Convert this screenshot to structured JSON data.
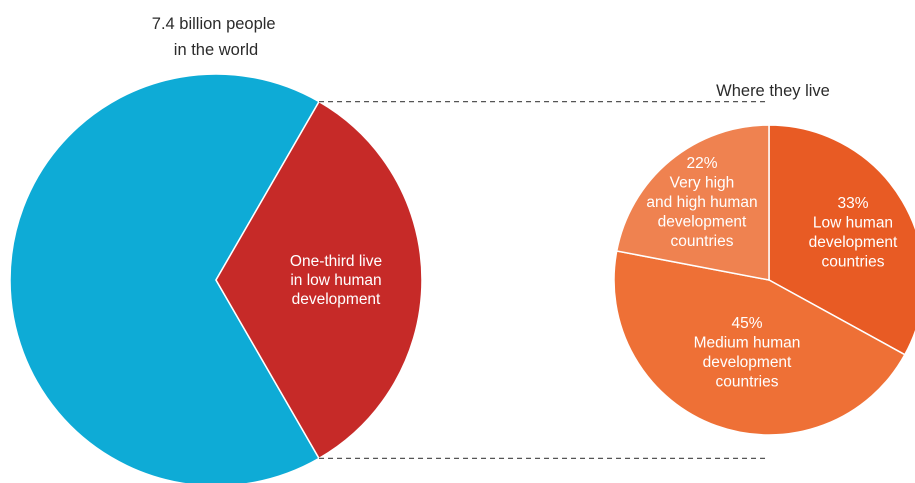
{
  "chart_data": [
    {
      "type": "pie",
      "title_lines": [
        "7.4 billion people",
        "in the world"
      ],
      "slices": [
        {
          "label_lines": [],
          "value": 66.67,
          "color": "#0eabd6"
        },
        {
          "label_lines": [
            "One-third live",
            "in low human",
            "development"
          ],
          "value": 33.33,
          "color": "#c62a28"
        }
      ]
    },
    {
      "type": "pie",
      "title_lines": [
        "Where they live"
      ],
      "slices": [
        {
          "label_lines": [
            "33%",
            "Low human",
            "development",
            "countries"
          ],
          "value": 33,
          "color": "#e85b24"
        },
        {
          "label_lines": [
            "45%",
            "Medium human",
            "development",
            "countries"
          ],
          "value": 45,
          "color": "#ee7036"
        },
        {
          "label_lines": [
            "22%",
            "Very high",
            "and high human",
            "development",
            "countries"
          ],
          "value": 22,
          "color": "#ef8250"
        }
      ]
    }
  ]
}
